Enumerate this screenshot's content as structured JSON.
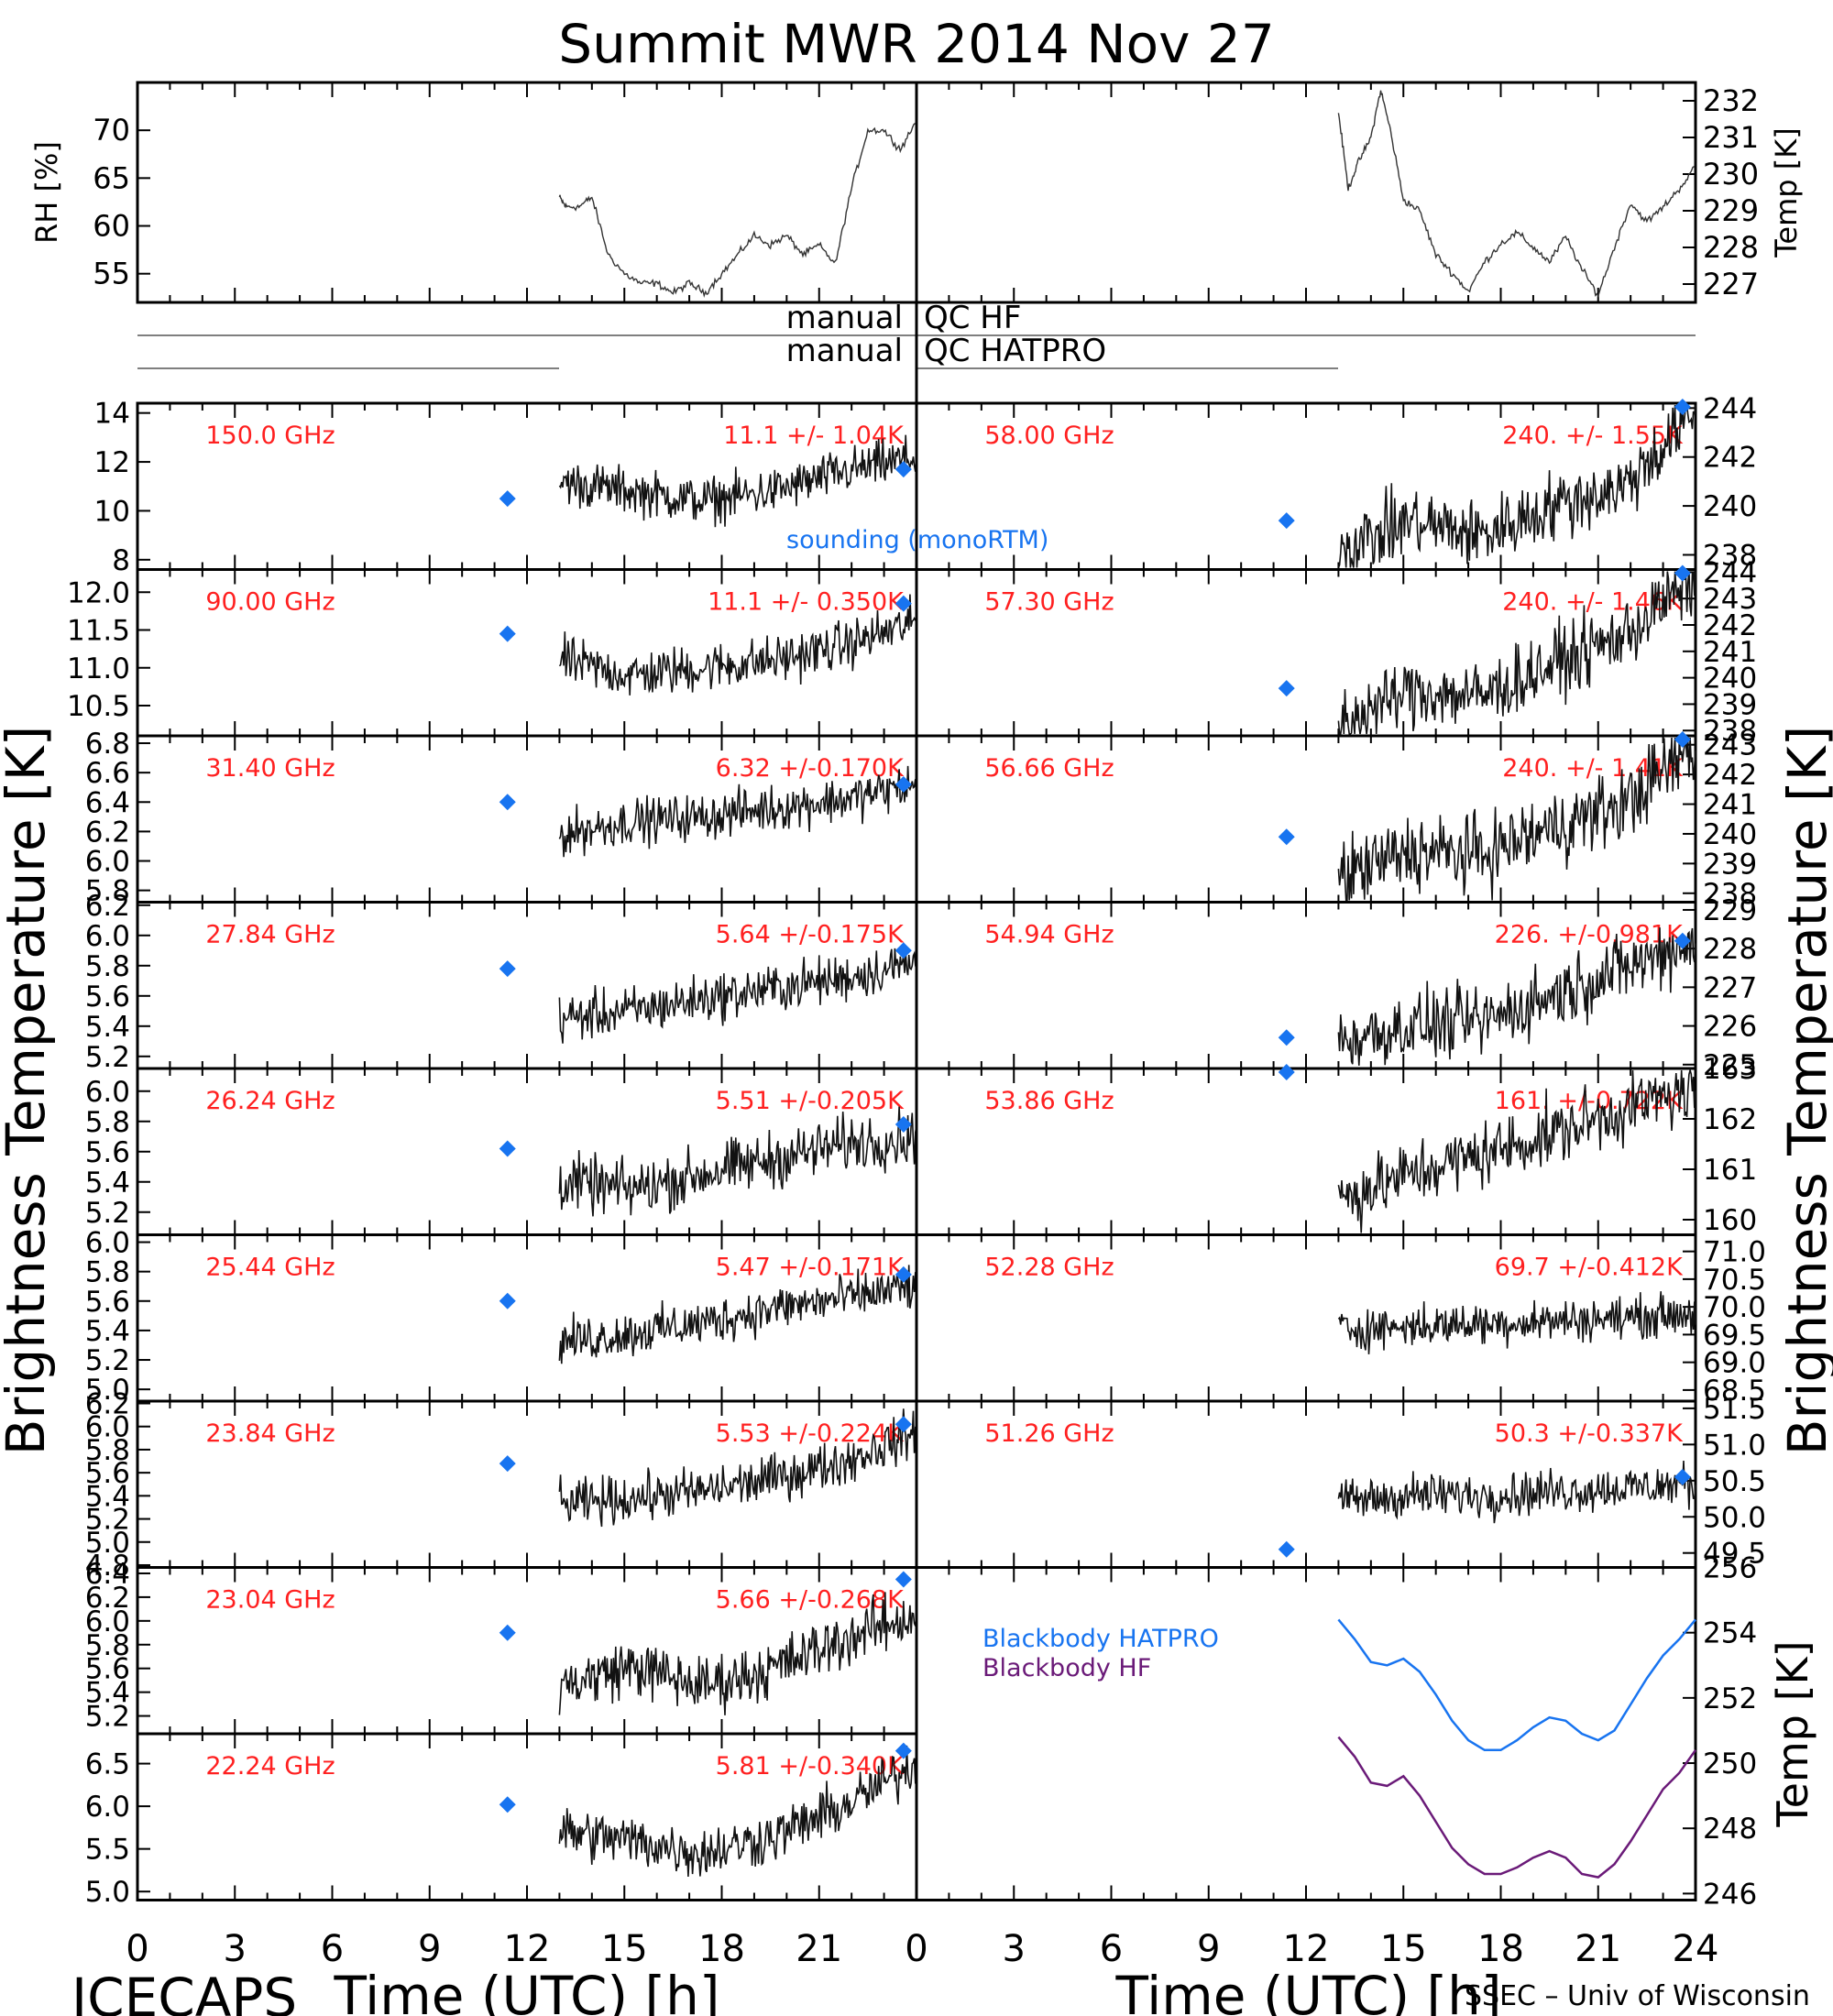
{
  "title": "Summit MWR 2014 Nov 27",
  "footer": {
    "left": "ICECAPS",
    "right": "SSEC – Univ of Wisconsin",
    "xlabel": "Time (UTC) [h]",
    "ylabel": "Brightness Temperature [K]"
  },
  "qc": {
    "label_hf_left": "manual",
    "label_hf_right": "QC HF",
    "label_hatpro_left": "manual",
    "label_hatpro_right": "QC HATPRO"
  },
  "sounding_label": "sounding (monoRTM)",
  "legend": {
    "hatpro": "Blackbody HATPRO",
    "hf": "Blackbody HF"
  },
  "colors": {
    "annotation": "#ff2020",
    "sounding": "#1874f0",
    "blackbody_hatpro": "#1874f0",
    "blackbody_hf": "#6a1a78",
    "data": "#000000"
  },
  "chart_data": {
    "type": "line",
    "x_axis": {
      "label": "Time (UTC) [h]",
      "range": [
        0,
        24
      ],
      "ticks": [
        "0",
        "3",
        "6",
        "9",
        "12",
        "15",
        "18",
        "21",
        "24"
      ]
    },
    "met": [
      {
        "side": "left",
        "ylabel": "RH [%]",
        "ylim": [
          52,
          75
        ],
        "yticks": [
          "55",
          "60",
          "65",
          "70"
        ],
        "series": [
          {
            "x": [
              13.0,
              13.2,
              13.6,
              14.0,
              14.5,
              15.0,
              15.5,
              16.0,
              16.5,
              17.0,
              17.5,
              18.0,
              18.5,
              19.0,
              19.5,
              20.0,
              20.5,
              21.0,
              21.5,
              22.0,
              22.5,
              23.0,
              23.5,
              24.0
            ],
            "y": [
              63,
              62,
              62,
              63,
              57,
              55,
              54,
              54,
              53,
              54,
              53,
              55,
              57,
              59,
              58,
              59,
              57,
              58,
              56,
              64,
              70,
              70,
              68,
              71
            ]
          }
        ]
      },
      {
        "side": "right",
        "ylabel": "Temp [K]",
        "ylim": [
          226.5,
          232.5
        ],
        "yticks": [
          "227",
          "228",
          "229",
          "230",
          "231",
          "232"
        ],
        "series": [
          {
            "x": [
              13.0,
              13.3,
              13.6,
              14.0,
              14.3,
              14.6,
              15.0,
              15.5,
              16.0,
              16.5,
              17.0,
              17.5,
              18.0,
              18.5,
              19.0,
              19.5,
              20.0,
              20.5,
              21.0,
              21.5,
              22.0,
              22.5,
              23.0,
              23.5,
              24.0
            ],
            "y": [
              231.7,
              229.6,
              230.3,
              231.0,
              232.3,
              231.2,
              229.3,
              229.0,
              227.8,
              227.3,
              226.8,
              227.6,
              228.1,
              228.4,
              228.0,
              227.6,
              228.3,
              227.4,
              226.7,
              228.0,
              229.2,
              228.7,
              229.1,
              229.6,
              230.2
            ]
          }
        ]
      }
    ],
    "qc_lines": [
      {
        "name": "manual QC HF",
        "x": [
          0,
          24
        ]
      },
      {
        "name": "manual QC HATPRO",
        "x": [
          0,
          13
        ]
      },
      {
        "name": "manual QC HATPRO",
        "x": [
          0,
          13
        ]
      }
    ],
    "channels_left": [
      {
        "freq": "150.0 GHz",
        "stat": "11.1 +/-  1.04K",
        "ylim": [
          7.6,
          14.4
        ],
        "yticks": [
          "8",
          "10",
          "12",
          "14"
        ],
        "mean": 11.1,
        "std": 1.04,
        "trend": [
          11.2,
          10.8,
          10.4,
          10.8,
          11.6,
          12.2
        ],
        "sounding": [
          [
            11.4,
            10.5
          ],
          [
            23.6,
            11.7
          ]
        ]
      },
      {
        "freq": "90.00 GHz",
        "stat": "11.1 +/- 0.350K",
        "ylim": [
          10.1,
          12.3
        ],
        "yticks": [
          "10.5",
          "11.0",
          "11.5",
          "12.0"
        ],
        "mean": 11.1,
        "std": 0.35,
        "trend": [
          11.1,
          10.9,
          11.0,
          11.1,
          11.3,
          11.6
        ],
        "sounding": [
          [
            11.4,
            11.45
          ],
          [
            23.6,
            11.85
          ]
        ]
      },
      {
        "freq": "31.40 GHz",
        "stat": "6.32 +/-0.170K",
        "ylim": [
          5.72,
          6.85
        ],
        "yticks": [
          "5.8",
          "6.0",
          "6.2",
          "6.4",
          "6.6",
          "6.8"
        ],
        "mean": 6.32,
        "std": 0.17,
        "trend": [
          6.18,
          6.27,
          6.3,
          6.36,
          6.42,
          6.52
        ],
        "sounding": [
          [
            11.4,
            6.4
          ],
          [
            23.6,
            6.52
          ]
        ]
      },
      {
        "freq": "27.84 GHz",
        "stat": "5.64 +/-0.175K",
        "ylim": [
          5.12,
          6.22
        ],
        "yticks": [
          "5.2",
          "5.4",
          "5.6",
          "5.8",
          "6.0",
          "6.2"
        ],
        "mean": 5.64,
        "std": 0.175,
        "trend": [
          5.45,
          5.5,
          5.58,
          5.65,
          5.72,
          5.82
        ],
        "sounding": [
          [
            11.4,
            5.78
          ],
          [
            23.6,
            5.9
          ]
        ]
      },
      {
        "freq": "26.24 GHz",
        "stat": "5.51 +/-0.205K",
        "ylim": [
          5.05,
          6.15
        ],
        "yticks": [
          "5.2",
          "5.4",
          "5.6",
          "5.8",
          "6.0"
        ],
        "mean": 5.51,
        "std": 0.205,
        "trend": [
          5.4,
          5.35,
          5.45,
          5.55,
          5.65,
          5.7
        ],
        "sounding": [
          [
            11.4,
            5.62
          ],
          [
            23.6,
            5.78
          ]
        ]
      },
      {
        "freq": "25.44 GHz",
        "stat": "5.47 +/-0.171K",
        "ylim": [
          4.92,
          6.05
        ],
        "yticks": [
          "5.0",
          "5.2",
          "5.4",
          "5.6",
          "5.8",
          "6.0"
        ],
        "mean": 5.47,
        "std": 0.171,
        "trend": [
          5.32,
          5.38,
          5.45,
          5.55,
          5.62,
          5.7
        ],
        "sounding": [
          [
            11.4,
            5.6
          ],
          [
            23.6,
            5.78
          ]
        ]
      },
      {
        "freq": "23.84 GHz",
        "stat": "5.53 +/-0.224K",
        "ylim": [
          4.78,
          6.22
        ],
        "yticks": [
          "4.8",
          "5.0",
          "5.2",
          "5.4",
          "5.6",
          "5.8",
          "6.0",
          "6.2"
        ],
        "mean": 5.53,
        "std": 0.224,
        "trend": [
          5.32,
          5.38,
          5.44,
          5.55,
          5.7,
          5.95
        ],
        "sounding": [
          [
            11.4,
            5.68
          ],
          [
            23.6,
            6.02
          ]
        ]
      },
      {
        "freq": "23.04 GHz",
        "stat": "5.66 +/-0.268K",
        "ylim": [
          5.05,
          6.45
        ],
        "yticks": [
          "5.2",
          "5.4",
          "5.6",
          "5.8",
          "6.0",
          "6.2",
          "6.4"
        ],
        "mean": 5.66,
        "std": 0.268,
        "trend": [
          5.45,
          5.62,
          5.45,
          5.6,
          5.85,
          6.05
        ],
        "sounding": [
          [
            11.4,
            5.9
          ],
          [
            23.6,
            6.35
          ]
        ]
      },
      {
        "freq": "22.24 GHz",
        "stat": "5.81 +/-0.340K",
        "ylim": [
          4.9,
          6.85
        ],
        "yticks": [
          "5.0",
          "5.5",
          "6.0",
          "6.5"
        ],
        "mean": 5.81,
        "std": 0.34,
        "trend": [
          5.7,
          5.6,
          5.45,
          5.65,
          6.0,
          6.5
        ],
        "sounding": [
          [
            11.4,
            6.02
          ],
          [
            23.6,
            6.65
          ]
        ]
      }
    ],
    "channels_right": [
      {
        "freq": "58.00 GHz",
        "stat": "240. +/- 1.55K",
        "ylim": [
          237.4,
          244.2
        ],
        "yticks": [
          "238",
          "240",
          "242",
          "244"
        ],
        "mean": 240,
        "std": 1.55,
        "trend": [
          238.2,
          239.4,
          238.8,
          240.0,
          240.8,
          243.8
        ],
        "sounding": [
          [
            11.4,
            239.4
          ],
          [
            23.6,
            244.2
          ]
        ]
      },
      {
        "freq": "57.30 GHz",
        "stat": "240. +/- 1.46K",
        "ylim": [
          237.8,
          244.1
        ],
        "yticks": [
          "238",
          "239",
          "240",
          "241",
          "242",
          "243",
          "244"
        ],
        "mean": 240,
        "std": 1.46,
        "trend": [
          238.2,
          239.5,
          239.3,
          240.5,
          241.6,
          243.8
        ],
        "sounding": [
          [
            11.4,
            239.6
          ],
          [
            23.6,
            244.0
          ]
        ]
      },
      {
        "freq": "56.66 GHz",
        "stat": "240. +/- 1.41K",
        "ylim": [
          237.7,
          243.3
        ],
        "yticks": [
          "238",
          "239",
          "240",
          "241",
          "242",
          "243"
        ],
        "mean": 240,
        "std": 1.41,
        "trend": [
          238.5,
          239.4,
          239.3,
          240.2,
          241.0,
          243.0
        ],
        "sounding": [
          [
            11.4,
            239.9
          ],
          [
            23.6,
            243.2
          ]
        ]
      },
      {
        "freq": "54.94 GHz",
        "stat": "226. +/-0.981K",
        "ylim": [
          224.9,
          229.2
        ],
        "yticks": [
          "225",
          "226",
          "227",
          "228",
          "229"
        ],
        "mean": 226,
        "std": 0.981,
        "trend": [
          225.6,
          226.0,
          226.1,
          226.8,
          227.5,
          228.2
        ],
        "sounding": [
          [
            11.4,
            225.7
          ],
          [
            23.6,
            228.2
          ]
        ]
      },
      {
        "freq": "53.86 GHz",
        "stat": "161. +/-0.722K",
        "ylim": [
          159.7,
          163.0
        ],
        "yticks": [
          "160",
          "161",
          "162",
          "163"
        ],
        "mean": 161,
        "std": 0.722,
        "trend": [
          160.4,
          160.9,
          161.3,
          161.7,
          162.2,
          162.6
        ],
        "sounding": [
          [
            11.4,
            163.0
          ]
        ]
      },
      {
        "freq": "52.28 GHz",
        "stat": "69.7 +/-0.412K",
        "ylim": [
          68.3,
          71.3
        ],
        "yticks": [
          "68.5",
          "69.0",
          "69.5",
          "70.0",
          "70.5",
          "71.0"
        ],
        "mean": 69.7,
        "std": 0.412,
        "trend": [
          69.6,
          69.65,
          69.7,
          69.75,
          69.8,
          69.9
        ],
        "sounding": []
      },
      {
        "freq": "51.26 GHz",
        "stat": "50.3 +/-0.337K",
        "ylim": [
          49.3,
          51.6
        ],
        "yticks": [
          "49.5",
          "50.0",
          "50.5",
          "51.0",
          "51.5"
        ],
        "mean": 50.3,
        "std": 0.337,
        "trend": [
          50.2,
          50.3,
          50.3,
          50.35,
          50.4,
          50.45
        ],
        "sounding": [
          [
            11.4,
            49.55
          ],
          [
            23.6,
            50.55
          ]
        ]
      }
    ],
    "blackbody": {
      "ylabel": "Temp [K]",
      "ylim": [
        245.8,
        256.0
      ],
      "yticks": [
        "246",
        "248",
        "250",
        "252",
        "254",
        "256"
      ],
      "series": [
        {
          "name": "Blackbody HATPRO",
          "x": [
            13.0,
            13.5,
            14.0,
            14.5,
            15.0,
            15.5,
            16.0,
            16.5,
            17.0,
            17.5,
            18.0,
            18.5,
            19.0,
            19.5,
            20.0,
            20.5,
            21.0,
            21.5,
            22.0,
            22.5,
            23.0,
            23.5,
            24.0
          ],
          "y": [
            254.4,
            253.8,
            253.1,
            253.0,
            253.2,
            252.8,
            252.1,
            251.3,
            250.7,
            250.4,
            250.4,
            250.7,
            251.1,
            251.4,
            251.3,
            250.9,
            250.7,
            251.0,
            251.8,
            252.6,
            253.3,
            253.8,
            254.4
          ]
        },
        {
          "name": "Blackbody HF",
          "x": [
            13.0,
            13.5,
            14.0,
            14.5,
            15.0,
            15.5,
            16.0,
            16.5,
            17.0,
            17.5,
            18.0,
            18.5,
            19.0,
            19.5,
            20.0,
            20.5,
            21.0,
            21.5,
            22.0,
            22.5,
            23.0,
            23.5,
            24.0
          ],
          "y": [
            250.8,
            250.2,
            249.4,
            249.3,
            249.6,
            249.0,
            248.2,
            247.4,
            246.9,
            246.6,
            246.6,
            246.8,
            247.1,
            247.3,
            247.1,
            246.6,
            246.5,
            246.9,
            247.6,
            248.4,
            249.2,
            249.7,
            250.4
          ]
        }
      ]
    }
  }
}
